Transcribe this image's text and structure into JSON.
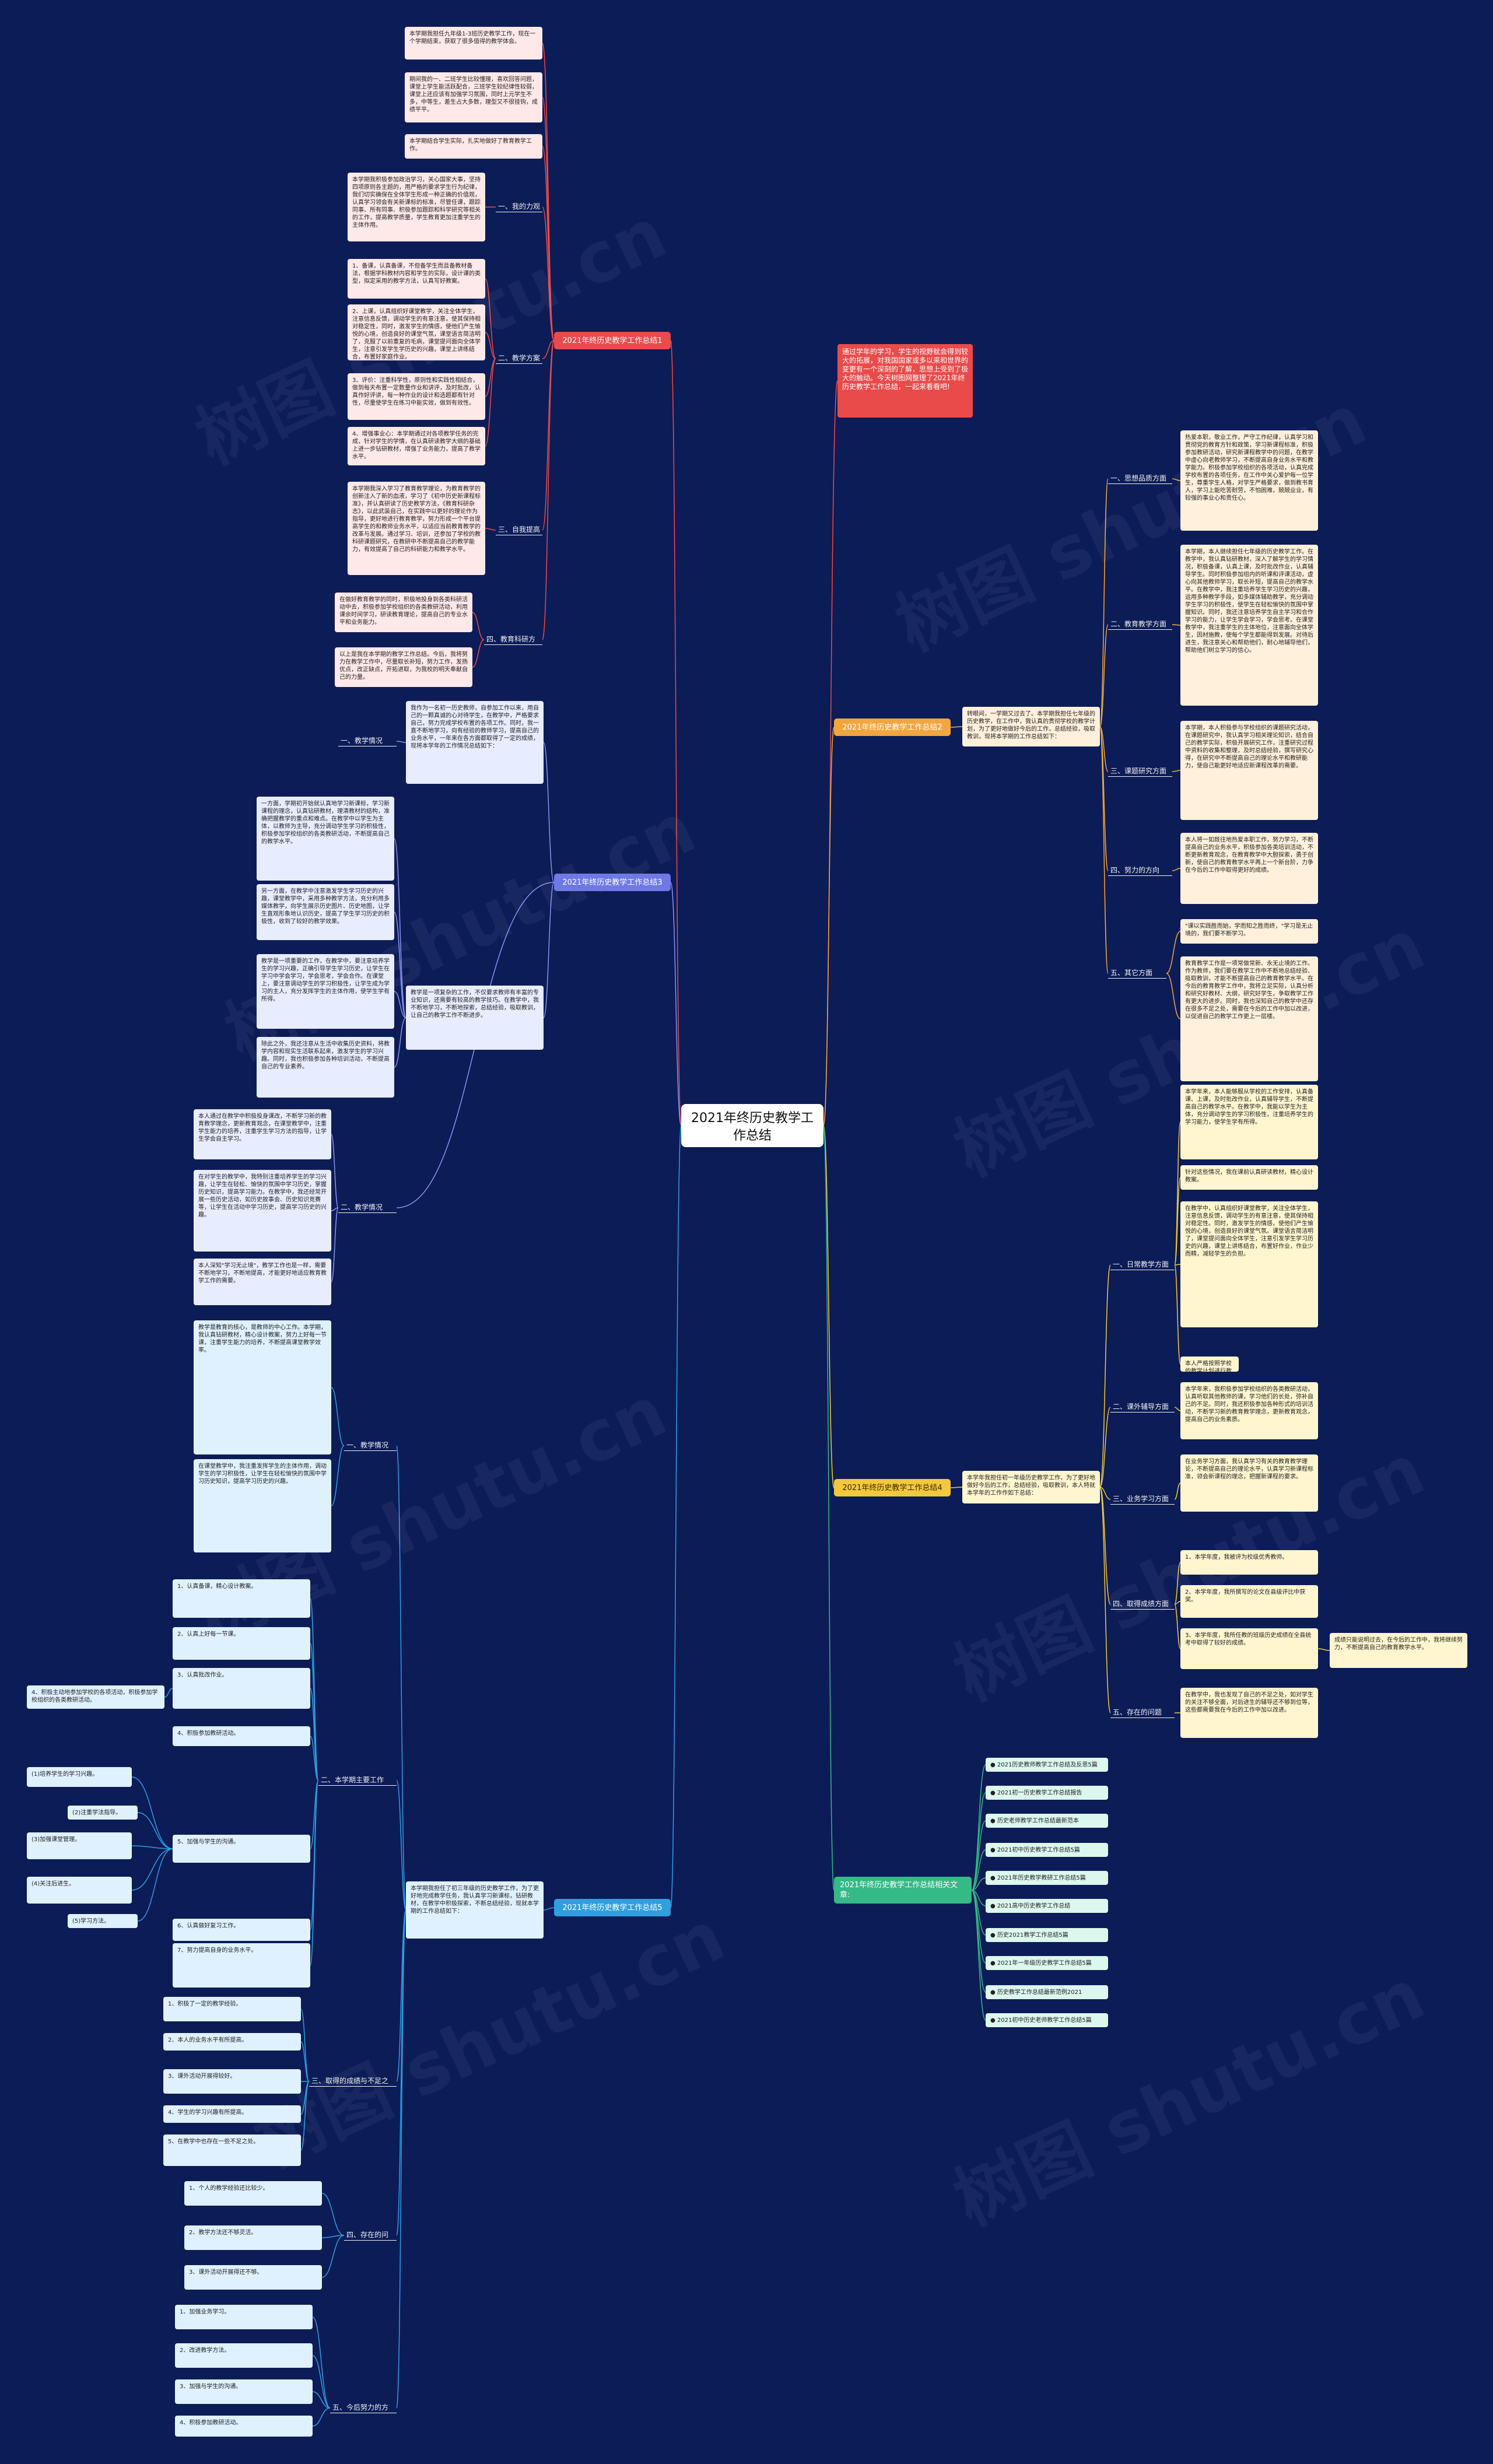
{
  "root": "2021年终历史教学工作总结",
  "intro": "通过学年的学习，学生的视野就会得到较大的拓展，对我国国家或多以来和世界的变更有一个深刻的了解，思想上受到了极大的触动。今天树图网整理了2021年终历史教学工作总结，一起来看看吧!",
  "watermark": "树图 shutu.cn",
  "branches": {
    "b1": {
      "title": "2021年终历史教学工作总结1",
      "intro_nodes": [
        "本学期我担任九年级1-3班历史教学工作，现在一个学期结束，获取了很多值得的教学体会。",
        "期间我的一、二班学生比较懂理，喜欢回答问题，课堂上学生能活跃配合，三班学生较纪律性较弱，课堂上还应该有加强学习氛围，同时上元学生不多，中等生，差生占大多数，理型又不很挂钩，成绩平平。",
        "本学期结合学生实际，扎实地做好了教育教学工作。"
      ],
      "s1": {
        "label": "一、我的力观",
        "text": "本学期我积极参加政治学习，关心国家大事，坚持四项原则各主题的，用严格的要求学生行为纪律，我们切实确保在全体学生形成一种正确的价值观，认真学习领会有关新课标的标准，尽管任课，跟踪同事、所有同事、积极参加跟踪和科学研究等相关的工作，提高教学质量，学生教育更加注重学生的主体作用。"
      },
      "s2": {
        "label": "二、教学方案",
        "items": [
          "1、备课，认真备课，不但备学生而且备教材备法，根据学科教材内容和学生的实际，设计课的类型，拟定采用的教学方法，认真写好教案。",
          "2、上课，认真组织好课堂教学，关注全体学生，注意信息反馈，调动学生的有意注意，使其保持相对稳定性，同时，激发学生的情感，使他们产生愉悦的心境，创造良好的课堂气氛，课堂语言简洁明了，克服了以前重复的毛病，课堂提问面向全体学生，注意引发学生学历史的兴趣，课堂上讲练结合，布置好家庭作业。",
          "3、评价：注重科学性，原则性和实践性相结合，做到每天布置一定数量作业和讲评，及时批改，认真作好评讲，每一种作业的设计和选题都有针对性，尽量使学生在练习中能实效，做到有效性。",
          "4、增强事业心：本学期通过对各项教学任务的完成，针对学生的学情，在认真研读教学大纲的基础上进一步钻研教材，增强了业务能力，提高了教学水平。"
        ]
      },
      "s3": {
        "label": "三、自我提高",
        "text": "本学期我深入学习了教育教学理论，为教育教学的创新注入了新的血液，学习了《初中历史新课程标准》，并认真研读了历史教学方法，《教育科研杂志》，以此武装自己，在实践中以更好的理论作为指导，更好地进行教育教学，努力形成一个平台提高学生的和教师业务水平，以适应当前教育教学的改革与发展。通过学习、培训，还参加了学校的教科研课题研究，在教研中不断提高自己的教学能力，有效提高了自己的科研能力和教学水平。"
      },
      "s4": {
        "label": "四、教育科研方面",
        "items": [
          "在做好教育教学的同时，积极地投身到各类科研活动中去，积极参加学校组织的各类教研活动，利用课余时间学习，研读教育理论，提高自己的专业水平和业务能力。",
          "以上是我在本学期的教学工作总结。今后，我将努力在教学工作中，尽量取长补短，努力工作，发扬优点，改正缺点，开拓进取，为我校的明天奉献自己的力量。"
        ]
      }
    },
    "b2": {
      "title": "2021年终历史教学工作总结2",
      "intro": "转眼间，一学期又过去了。本学期我担任七年级的历史教学，在工作中，我认真的贯彻学校的教学计划，为了更好地做好今后的工作，总结经验，吸取教训，现将本学期的工作总结如下：",
      "s1": {
        "label": "一、思想品质方面",
        "text": "热爱本职，敬业工作，严守工作纪律，认真学习和贯彻党的教育方针和政策，学习新课程标准，积极参加教研活动，研究新课程教学中的问题，在教学中虚心向老教师学习，不断提高自身业务水平和教学能力。积极参加学校组织的各项活动，认真完成学校布置的各项任务，在工作中关心爱护每一位学生，尊重学生人格，对学生严格要求，做到教书育人，学习上能吃苦耐劳，不怕困难，兢兢业业，有较强的事业心和责任心。"
      },
      "s2": {
        "label": "二、教育教学方面",
        "text": "本学期，本人继续担任七年级的历史教学工作。在教学中，我认真钻研教材，深入了解学生的学习情况，积极备课，认真上课，及时批改作业，认真辅导学生。同时积极参加组内的听课和评课活动，虚心向其他教师学习，取长补短，提高自己的教学水平。在教学中，我注重培养学生学习历史的兴趣，运用多种教学手段，如多媒体辅助教学，充分调动学生学习的积极性，使学生在轻松愉快的氛围中掌握知识。同时，我还注意培养学生自主学习和合作学习的能力，让学生学会学习，学会思考。在课堂教学中，我注重学生的主体地位，注意面向全体学生，因材施教，使每个学生都能得到发展。对待后进生，我注意关心和帮助他们，耐心地辅导他们，帮助他们树立学习的信心。"
      },
      "s3": {
        "label": "三、课题研究方面",
        "text": "本学期，本人积极参与学校组织的课题研究活动，在课题研究中，我认真学习相关理论知识，结合自己的教学实际，积极开展研究工作，注重研究过程中资料的收集和整理，及时总结经验，撰写研究心得，在研究中不断提高自己的理论水平和教研能力，使自己能更好地适应新课程改革的需要。"
      },
      "s4": {
        "label": "四、努力的方向",
        "text": "本人将一如既往地热爱本职工作，努力学习，不断提高自己的业务水平，积极参加各类培训活动，不断更新教育观念，在教育教学中大胆探索，勇于创新，使自己的教育教学水平再上一个新台阶，力争在今后的工作中取得更好的成绩。"
      },
      "s5": {
        "label": "五、其它方面",
        "items": [
          "\"课以实践胜而始，学而知之胜而终，\"学习是无止境的，我们要不断学习。",
          "教育教学工作是一项常做常新、永无止境的工作。作为教师，我们要在教学工作中不断地总结经验、吸取教训，才能不断提高自己的教育教学水平。在今后的教育教学工作中，我将立足实际，认真分析和研究好教材、大纲，研究好学生，争取教学工作有更大的进步。同时，我也深知自己的教学中还存在很多不足之处，需要在今后的工作中加以改进，以促进自己的教学工作更上一层楼。"
        ]
      }
    },
    "b3": {
      "title": "2021年终历史教学工作总结3",
      "intro": "我作为一名初一历史教师，自参加工作以来，用自己的一颗真诚的心对待学生，在教学中，严格要求自己，努力完成学校布置的各项工作。同时，我一直不断地学习，向有经验的教师学习，提高自己的业务水平，一年来在各方面都取得了一定的成绩，现将本学年的工作情况总结如下：",
      "s1": {
        "label": "一、教学情况",
        "items": [
          "一方面，学期初开始就认真地学习新课标，学习新课程的理念，认真钻研教材，理清教材的结构，准确把握教学的重点和难点。在教学中以学生为主体，以教师为主导，充分调动学生学习的积极性，积极参加学校组织的各类教研活动，不断提高自己的教学水平。",
          "另一方面，在教学中注意激发学生学习历史的兴趣，课堂教学中，采用多种教学方法，充分利用多媒体教学，向学生展示历史图片、历史地图，让学生直观形象地认识历史，提高了学生学习历史的积极性，收到了较好的教学效果。",
          "教学是一项重要的工作，在教学中，要注意培养学生的学习兴趣，正确引导学生学习历史，让学生在学习中学会学习，学会思考，学会合作。在课堂上，要注意调动学生的学习积极性，让学生成为学习的主人，充分发挥学生的主体作用，使学生学有所得。",
          "除此之外，我还注意从生活中收集历史资料，将教学内容和现实生活联系起来，激发学生的学习兴趣。同时，我也积极参加各种培训活动，不断提高自己的专业素养。"
        ],
        "extra": "教学是一项复杂的工作，不仅要求教师有丰富的专业知识，还需要有较高的教学技巧。在教学中，我不断地学习，不断地探索，总结经验，吸取教训，让自己的教学工作不断进步。"
      },
      "s2": {
        "label": "二、教学情况",
        "items": [
          "本人通过在教学中积极投身课改，不断学习新的教育教学理念，更新教育观念，在课堂教学中，注重学生能力的培养，注重学生学习方法的指导，让学生学会自主学习。",
          "在对学生的教学中，我特别注重培养学生的学习兴趣，让学生在轻松、愉快的氛围中学习历史，掌握历史知识，提高学习能力。在教学中，我还经常开展一些历史活动，如历史故事会、历史知识竞赛等，让学生在活动中学习历史，提高学习历史的兴趣。",
          "本人深知\"学习无止境\"，教学工作也是一样，需要不断地学习，不断地提高，才能更好地适应教育教学工作的需要。"
        ]
      }
    },
    "b4": {
      "title": "2021年终历史教学工作总结4",
      "intro": "本学年我担任初一年级历史教学工作，为了更好地做好今后的工作，总结经验，吸取教训，本人特就本学年的工作作如下总结：",
      "s1": {
        "label": "一、日常教学方面",
        "items": [
          "本学年来，本人能够服从学校的工作安排，认真备课、上课，及时批改作业，认真辅导学生，不断提高自己的教学水平。在教学中，我能以学生为主体，充分调动学生的学习积极性，注重培养学生的学习能力，使学生学有所得。",
          "针对这些情况，我在课前认真研读教材，精心设计教案。",
          "在教学中，认真组织好课堂教学，关注全体学生，注意信息反馈，调动学生的有意注意，使其保持相对稳定性。同时，激发学生的情感，使他们产生愉悦的心境，创造良好的课堂气氛。课堂语言简洁明了，课堂提问面向全体学生，注意引发学生学习历史的兴趣，课堂上讲练结合，布置好作业，作业少而精，减轻学生的负担。",
          "本人严格按照学校的教学计划进行教学，认真做好课前准备，认真上好每一节课，课后认真进行反思，总结经验，不断提高自己的教学水平，并且积极参加学校组织的各项教研活动。"
        ]
      },
      "s2": {
        "label": "二、课外辅导方面",
        "text": "本学年来，我积极参加学校组织的各类教研活动，认真听取其他教师的课，学习他们的长处，弥补自己的不足。同时，我还积极参加各种形式的培训活动，不断学习新的教育教学理念，更新教育观念，提高自己的业务素质。"
      },
      "s3": {
        "label": "三、业务学习方面",
        "text": "在业务学习方面，我认真学习有关的教育教学理论，不断提高自己的理论水平，认真学习新课程标准，领会新课程的理念，把握新课程的要求。"
      },
      "s4": {
        "label": "四、取得成绩方面",
        "items": [
          "1、本学年度，我被评为校级优秀教师。",
          "2、本学年度，我所撰写的论文在县级评比中获奖。",
          "3、本学年度，我所任教的班级历史成绩在全县统考中取得了较好的成绩。"
        ],
        "note": "成绩只能说明过去，在今后的工作中，我将继续努力，不断提高自己的教育教学水平。"
      },
      "s5": {
        "label": "五、存在的问题",
        "text": "在教学中，我也发现了自己的不足之处，如对学生的关注不够全面，对后进生的辅导还不够到位等，这些都需要我在今后的工作中加以改进。"
      }
    },
    "b5": {
      "title": "2021年终历史教学工作总结5",
      "intro": "本学期我担任了初三年级的历史教学工作，为了更好地完成教学任务，我认真学习新课标，钻研教材，在教学中积极探索，不断总结经验，现就本学期的工作总结如下：",
      "s1": {
        "label": "一、教学情况",
        "items": [
          "教学是教育的核心，是教师的中心工作。本学期，我认真钻研教材，精心设计教案，努力上好每一节课，注重学生能力的培养，不断提高课堂教学效率。",
          "在课堂教学中，我注重发挥学生的主体作用，调动学生的学习积极性，让学生在轻松愉快的氛围中学习历史知识，提高学习历史的兴趣。"
        ]
      },
      "s2": {
        "label": "二、本学期主要工作",
        "items": [
          "1、认真备课，精心设计教案。",
          "2、认真上好每一节课。",
          "3、认真批改作业。",
          "4、积极参加教研活动。",
          "5、加强与学生的沟通。",
          "6、认真做好复习工作。",
          "7、努力提高自身的业务水平。"
        ],
        "notes": [
          "(1)培养学生的学习兴趣。",
          "(2)注重学法指导。",
          "(3)加强课堂管理。",
          "(4)关注后进生。",
          "(5)学习方法。"
        ],
        "left": "4、积极主动地参加学校的各项活动，积极参加学校组织的各类教研活动。"
      },
      "s3": {
        "label": "三、取得的成绩与不足之处",
        "items": [
          "1、积极了一定的教学经验。",
          "2、本人的业务水平有所提高。",
          "3、课外活动开展得较好。",
          "4、学生的学习兴趣有所提高。",
          "5、在教学中也存在一些不足之处。"
        ]
      },
      "s4": {
        "label": "四、存在的问题",
        "items": [
          "1、个人的教学经验还比较少。",
          "2、教学方法还不够灵活。",
          "3、课外活动开展得还不够。"
        ]
      },
      "s5": {
        "label": "五、今后努力的方向",
        "items": [
          "1、加强业务学习。",
          "2、改进教学方法。",
          "3、加强与学生的沟通。",
          "4、积极参加教研活动。"
        ]
      }
    },
    "b6": {
      "title": "2021年终历史教学工作总结相关文章:",
      "links": [
        "● 2021历史教师教学工作总结及反思5篇",
        "● 2021初一历史教学工作总结报告",
        "● 历史老师教学工作总结最新范本",
        "● 2021初中历史教学工作总结5篇",
        "● 2021年历史教学教研工作总结5篇",
        "● 2021高中历史教学工作总结",
        "● 历史2021教学工作总结5篇",
        "● 2021年一年级历史教学工作总结5篇",
        "● 历史教学工作总结最新范例2021",
        "● 2021初中历史老师教学工作总结5篇"
      ]
    }
  }
}
